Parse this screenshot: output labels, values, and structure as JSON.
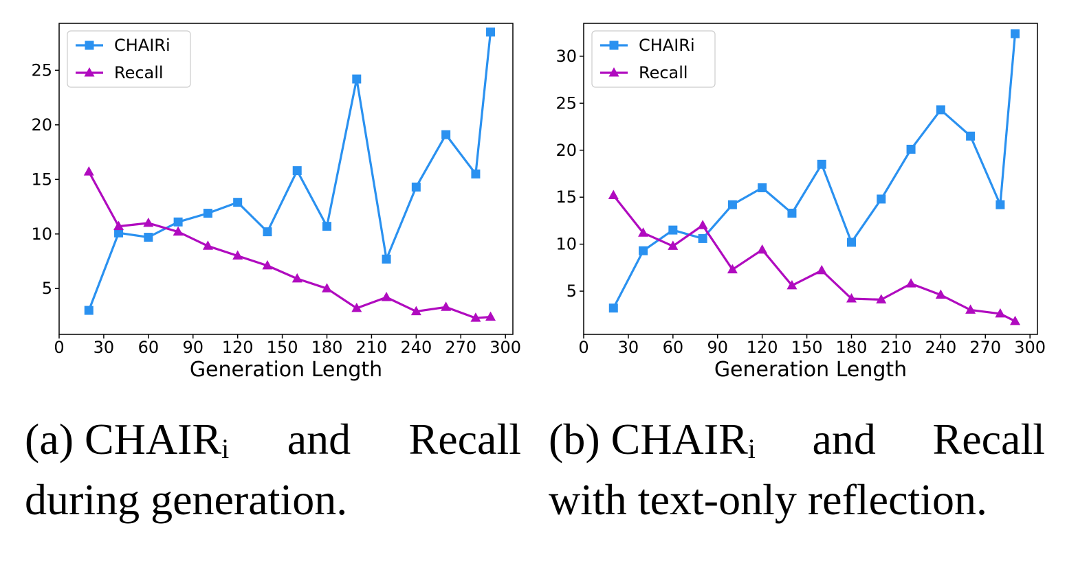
{
  "chart_data": [
    {
      "type": "line",
      "xlabel": "Generation Length",
      "ylabel": "",
      "xlim": [
        0,
        305
      ],
      "ylim": [
        0.8,
        29.3
      ],
      "xticks": [
        0,
        30,
        60,
        90,
        120,
        150,
        180,
        210,
        240,
        270,
        300
      ],
      "yticks": [
        5,
        10,
        15,
        20,
        25
      ],
      "legend_position": "top-left",
      "series": [
        {
          "name": "CHAIRi",
          "marker": "square",
          "color": "#2a91f0",
          "x": [
            20,
            40,
            60,
            80,
            100,
            120,
            140,
            160,
            180,
            200,
            220,
            240,
            260,
            280,
            290
          ],
          "y": [
            3.0,
            10.1,
            9.7,
            11.1,
            11.9,
            12.9,
            10.2,
            15.8,
            10.7,
            24.2,
            7.7,
            14.3,
            19.1,
            15.5,
            28.5
          ]
        },
        {
          "name": "Recall",
          "marker": "triangle",
          "color": "#b00bbf",
          "x": [
            20,
            40,
            60,
            80,
            100,
            120,
            140,
            160,
            180,
            200,
            220,
            240,
            260,
            280,
            290
          ],
          "y": [
            15.7,
            10.7,
            11.0,
            10.2,
            8.9,
            8.0,
            7.1,
            5.9,
            5.0,
            3.2,
            4.2,
            2.9,
            3.3,
            2.3,
            2.4
          ]
        }
      ],
      "caption": {
        "prefix": "(a) CHAIR",
        "subscript": "i",
        "mid": "and",
        "end": "Recall",
        "line2": "during generation."
      }
    },
    {
      "type": "line",
      "xlabel": "Generation Length",
      "ylabel": "",
      "xlim": [
        0,
        305
      ],
      "ylim": [
        0.4,
        33.5
      ],
      "xticks": [
        0,
        30,
        60,
        90,
        120,
        150,
        180,
        210,
        240,
        270,
        300
      ],
      "yticks": [
        5,
        10,
        15,
        20,
        25,
        30
      ],
      "legend_position": "top-left",
      "series": [
        {
          "name": "CHAIRi",
          "marker": "square",
          "color": "#2a91f0",
          "x": [
            20,
            40,
            60,
            80,
            100,
            120,
            140,
            160,
            180,
            200,
            220,
            240,
            260,
            280,
            290
          ],
          "y": [
            3.2,
            9.3,
            11.5,
            10.6,
            14.2,
            16.0,
            13.3,
            18.5,
            10.2,
            14.8,
            20.1,
            24.3,
            21.5,
            14.2,
            32.4
          ]
        },
        {
          "name": "Recall",
          "marker": "triangle",
          "color": "#b00bbf",
          "x": [
            20,
            40,
            60,
            80,
            100,
            120,
            140,
            160,
            180,
            200,
            220,
            240,
            260,
            280,
            290
          ],
          "y": [
            15.2,
            11.2,
            9.8,
            12.0,
            7.3,
            9.4,
            5.6,
            7.2,
            4.2,
            4.1,
            5.8,
            4.6,
            3.0,
            2.6,
            1.8
          ]
        }
      ],
      "caption": {
        "prefix": "(b) CHAIR",
        "subscript": "i",
        "mid": "and",
        "end": "Recall",
        "line2": "with text-only reflection."
      }
    }
  ]
}
